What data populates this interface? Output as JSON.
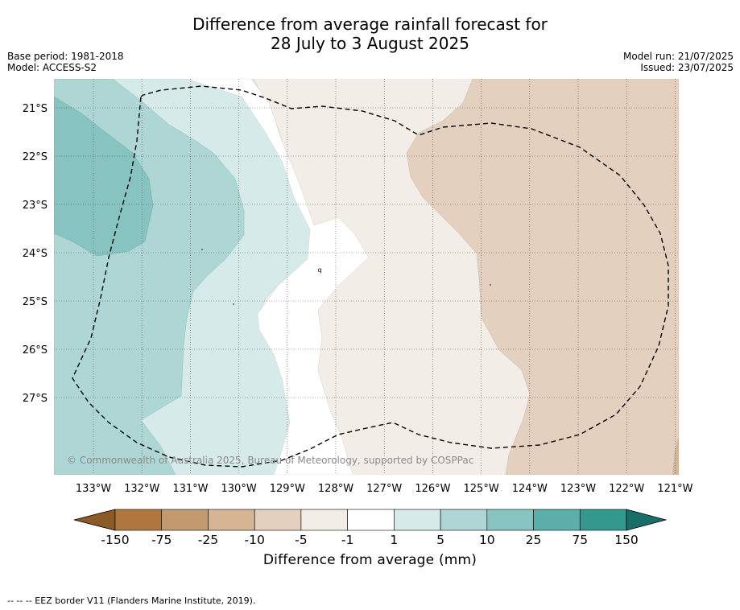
{
  "title": {
    "line1": "Difference from average rainfall forecast for",
    "line2": "28 July to 3 August 2025"
  },
  "meta_left": {
    "base_period": "Base period: 1981-2018",
    "model": "Model: ACCESS-S2"
  },
  "meta_right": {
    "model_run": "Model run: 21/07/2025",
    "issued": "Issued: 23/07/2025"
  },
  "map": {
    "latitude_labels": [
      "21°S",
      "22°S",
      "23°S",
      "24°S",
      "25°S",
      "26°S",
      "27°S"
    ],
    "longitude_labels": [
      "133°W",
      "132°W",
      "131°W",
      "130°W",
      "129°W",
      "128°W",
      "127°W",
      "126°W",
      "125°W",
      "124°W",
      "123°W",
      "122°W",
      "121°W"
    ],
    "copyright": "© Commonwealth of Australia 2025, Bureau of Meteorology, supported by COSPPac",
    "stray_mark": "q",
    "border_style": "dashed"
  },
  "colorbar": {
    "title": "Difference from average (mm)",
    "tick_labels": [
      "-150",
      "-75",
      "-25",
      "-10",
      "-5",
      "-1",
      "1",
      "5",
      "10",
      "25",
      "75",
      "150"
    ],
    "colors": {
      "below_min": "#8c5a25",
      "-150_to_-75": "#b07840",
      "-75_to_-25": "#c39a6e",
      "-25_to_-10": "#d5b594",
      "-10_to_-5": "#e4d0bf",
      "-5_to_-1": "#f3ede8",
      "-1_to_1": "#ffffff",
      "1_to_5": "#d6eae9",
      "5_to_10": "#aed6d4",
      "10_to_25": "#86c3c1",
      "25_to_75": "#5caeab",
      "75_to_150": "#33998f",
      "above_max": "#1a6e69"
    }
  },
  "footer": "--  --  -- EEZ border V11 (Flanders Marine Institute, 2019)."
}
